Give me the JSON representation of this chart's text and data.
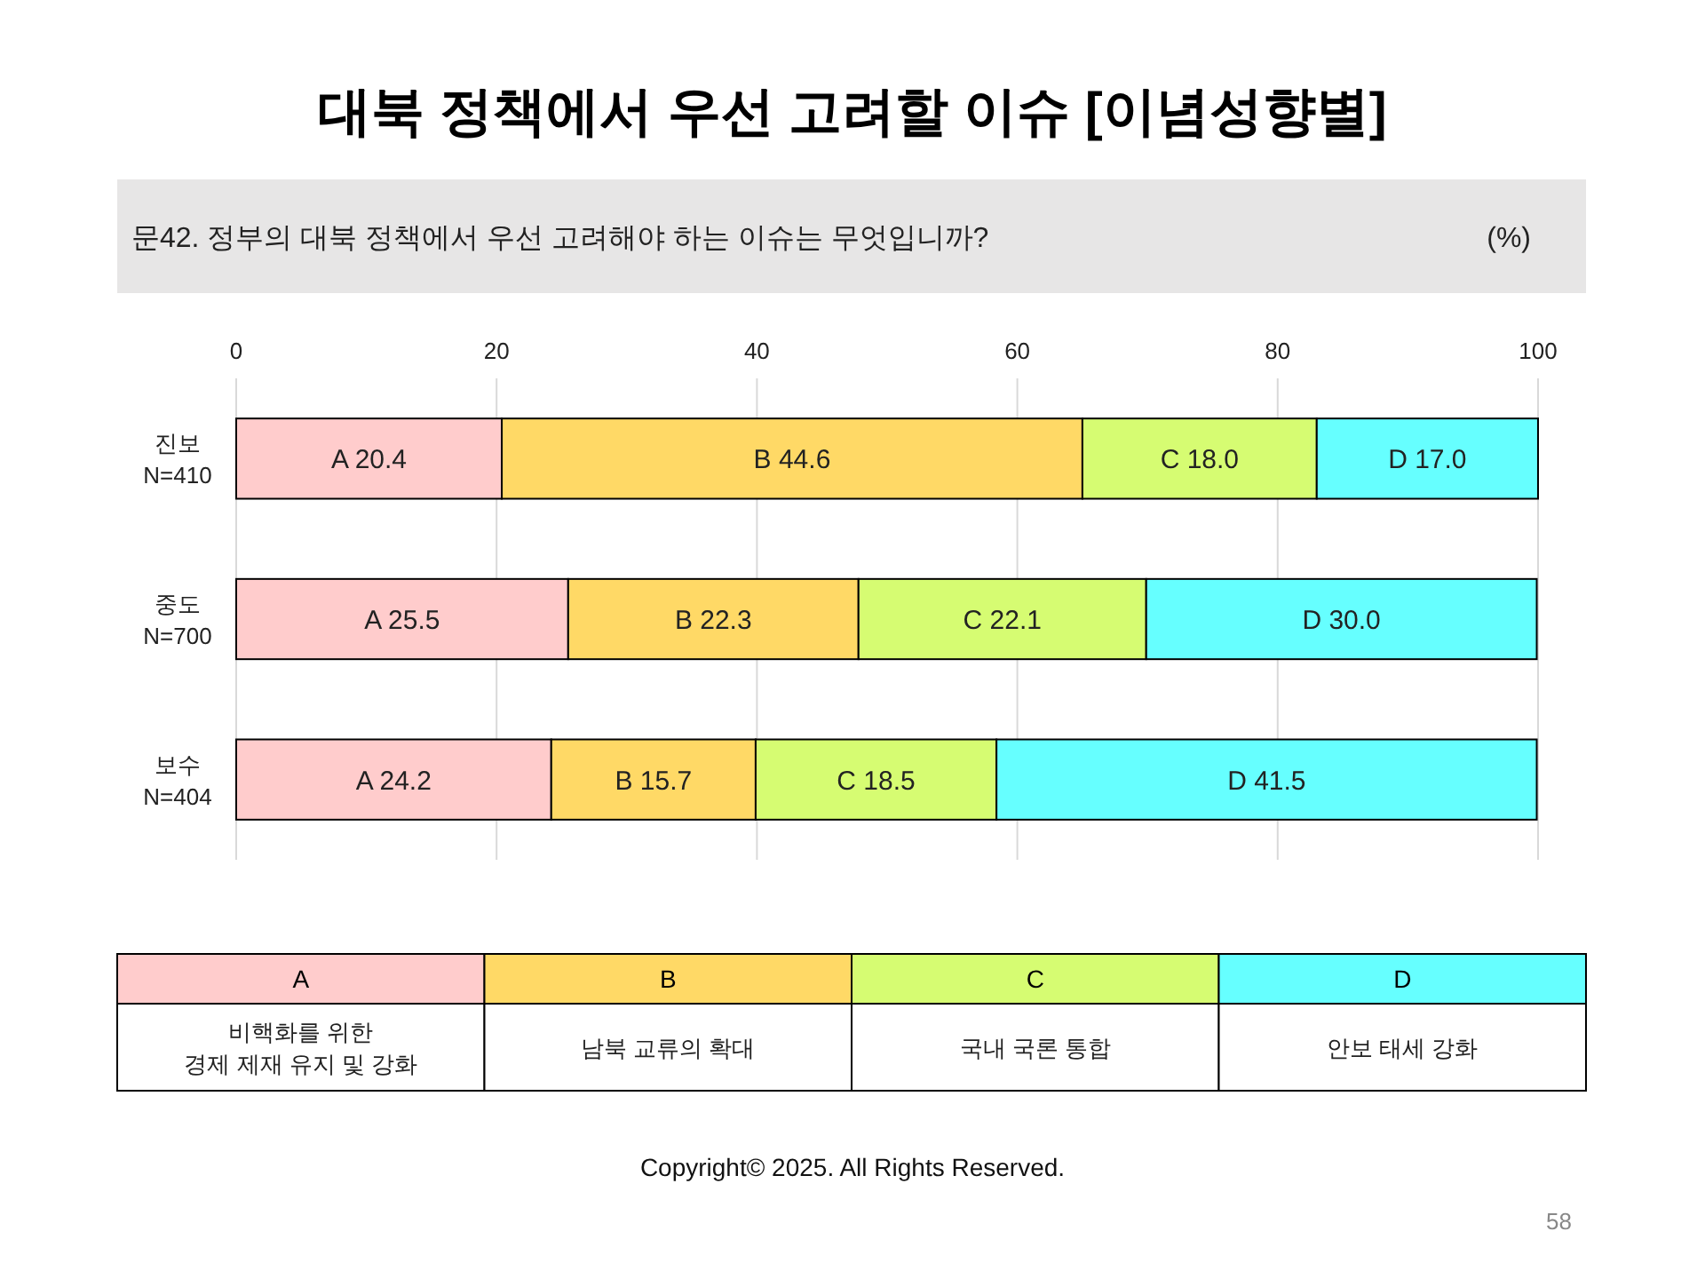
{
  "chart_data": {
    "type": "bar",
    "orientation": "horizontal",
    "stacked": true,
    "title": "대북 정책에서 우선 고려할 이슈 [이념성향별]",
    "subtitle": "문42. 정부의 대북 정책에서 우선 고려해야 하는 이슈는 무엇입니까?",
    "xlabel": "(%)",
    "categories": [
      "진보\nN=410",
      "중도\nN=700",
      "보수\nN=404"
    ],
    "series": [
      {
        "name": "A",
        "color": "#ffcccc",
        "values": [
          20.4,
          25.5,
          24.2
        ],
        "value_labels": [
          "A 20.4",
          "A 25.5",
          "A 24.2"
        ]
      },
      {
        "name": "B",
        "color": "#ffd966",
        "values": [
          44.6,
          22.3,
          15.7
        ],
        "value_labels": [
          "B 44.6",
          "B 22.3",
          "B 15.7"
        ]
      },
      {
        "name": "C",
        "color": "#d6fc72",
        "values": [
          18.0,
          22.1,
          18.5
        ],
        "value_labels": [
          "C 18.0",
          "C 22.1",
          "C 18.5"
        ]
      },
      {
        "name": "D",
        "color": "#66ffff",
        "values": [
          17.0,
          30.0,
          41.5
        ],
        "value_labels": [
          "D 17.0",
          "D 30.0",
          "D 41.5"
        ]
      }
    ],
    "xlim": [
      0,
      100
    ],
    "xticks": [
      0,
      20,
      40,
      60,
      80,
      100
    ],
    "grid": "x",
    "legend": "bottom",
    "annotations": [
      "비핵화를 위한\n경제 제재 유지 및 강화",
      "남북 교류의 확대",
      "국내 국론 통합",
      "안보 태세 강화",
      "Copyright© 2025. All Rights Reserved.",
      "58"
    ]
  }
}
